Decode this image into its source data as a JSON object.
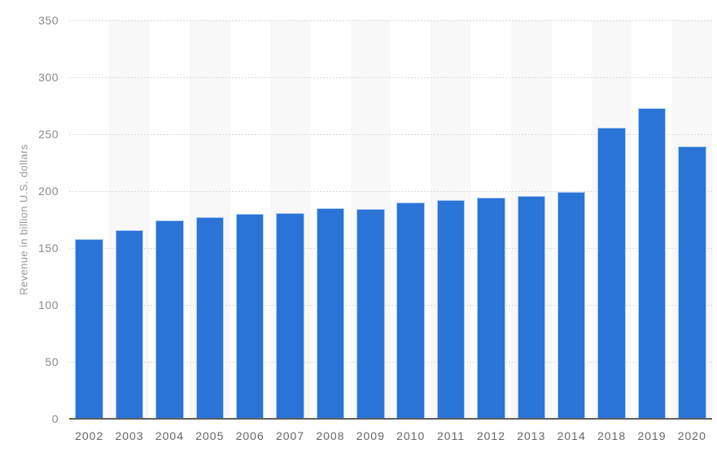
{
  "chart_data": {
    "type": "bar",
    "title": "",
    "xlabel": "",
    "ylabel": "Revenue in billion U.S. dollars",
    "categories": [
      "2002",
      "2003",
      "2004",
      "2005",
      "2006",
      "2007",
      "2008",
      "2009",
      "2010",
      "2011",
      "2012",
      "2013",
      "2014",
      "2018",
      "2019",
      "2020"
    ],
    "values": [
      158,
      166,
      174,
      177,
      180,
      181,
      185,
      184,
      190,
      192,
      194,
      196,
      199,
      256,
      273,
      239
    ],
    "ylim": [
      0,
      350
    ],
    "yticks": [
      0,
      50,
      100,
      150,
      200,
      250,
      300,
      350
    ],
    "grid": "horizontal-dotted",
    "legend": "none",
    "column_bands": "alternating-odd-columns"
  },
  "colors": {
    "bar_fill": "#2a74d8",
    "bar_edge": "#aecdf2",
    "band": "#f8f8f8",
    "gridline": "#d9d9d9",
    "axis_line": "#5f5f5f",
    "y_tick_label": "#8a8a8a",
    "x_tick_label": "#666666",
    "y_axis_title": "#999999",
    "background": "#ffffff"
  }
}
